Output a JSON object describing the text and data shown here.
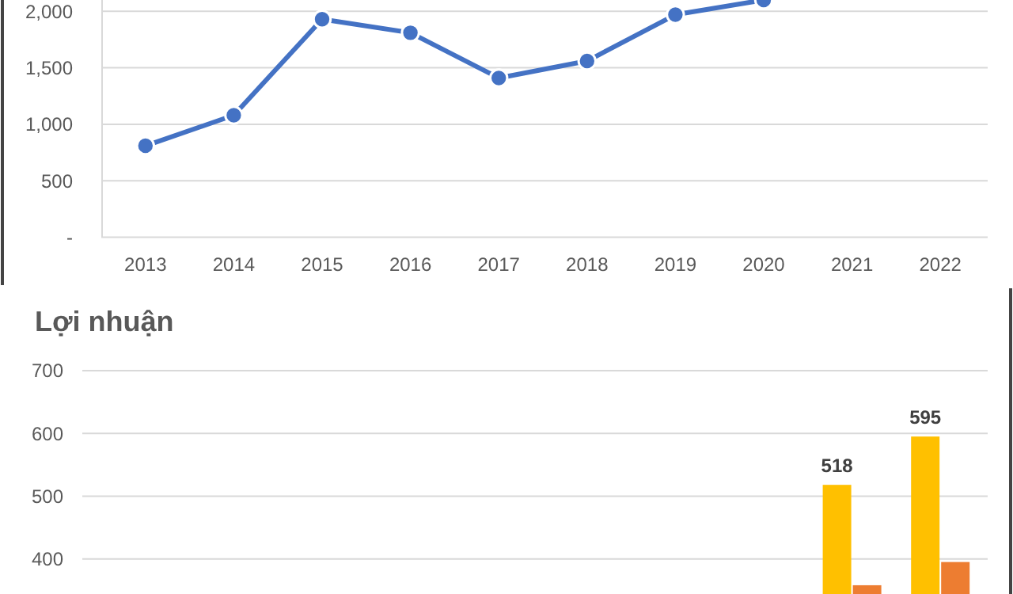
{
  "chart_data": [
    {
      "type": "line",
      "categories": [
        "2013",
        "2014",
        "2015",
        "2016",
        "2017",
        "2018",
        "2019",
        "2020",
        "2021",
        "2022"
      ],
      "series": [
        {
          "color": "#4472c4",
          "values": [
            810,
            1080,
            1930,
            1810,
            1410,
            1560,
            1970,
            2100,
            null,
            null
          ]
        }
      ],
      "ylim": [
        0,
        2100
      ],
      "yticks": [
        {
          "value": 0,
          "label": "-"
        },
        500,
        {
          "value": 1000,
          "label": "1,000"
        },
        {
          "value": 1500,
          "label": "1,500"
        },
        {
          "value": 2000,
          "label": "2,000"
        }
      ],
      "grid": "y",
      "marker": "circle",
      "line_style": "solid"
    },
    {
      "type": "bar",
      "title": "Lợi nhuận",
      "categories": [
        null,
        null,
        null,
        null,
        null,
        null,
        null,
        null,
        null,
        null
      ],
      "series": [
        {
          "color": "#ffc000",
          "values": [
            null,
            null,
            null,
            null,
            null,
            null,
            null,
            null,
            518,
            595
          ],
          "value_labels": [
            null,
            null,
            null,
            null,
            null,
            null,
            null,
            null,
            "518",
            "595"
          ]
        },
        {
          "color": "#ed7d31",
          "values": [
            null,
            null,
            null,
            null,
            null,
            null,
            null,
            null,
            358,
            395
          ]
        }
      ],
      "ylim": [
        340,
        700
      ],
      "yticks": [
        400,
        500,
        600,
        700
      ],
      "grid": "y",
      "tick_labels": "y"
    }
  ]
}
